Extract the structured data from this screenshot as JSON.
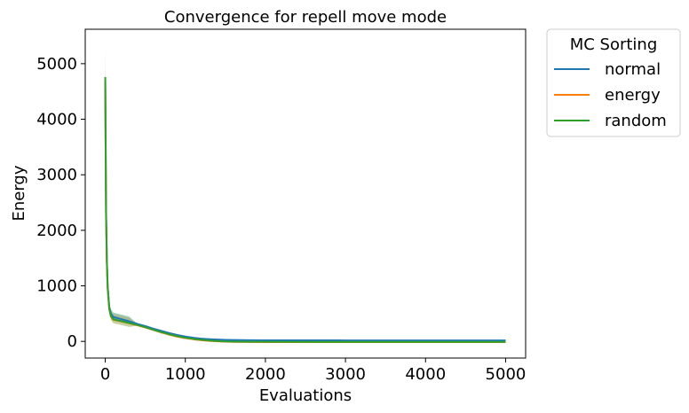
{
  "chart_data": {
    "type": "line",
    "title": "Convergence for repell move mode",
    "xlabel": "Evaluations",
    "ylabel": "Energy",
    "xlim": [
      -250,
      5250
    ],
    "ylim": [
      -300,
      5620
    ],
    "xticks": [
      0,
      1000,
      2000,
      3000,
      4000,
      5000
    ],
    "yticks": [
      0,
      1000,
      2000,
      3000,
      4000,
      5000
    ],
    "grid": false,
    "legend": {
      "title": "MC Sorting",
      "placement": "outside-top-right"
    },
    "series": [
      {
        "name": "normal",
        "color": "#1f77b4",
        "x": [
          0,
          10,
          20,
          30,
          50,
          70,
          100,
          150,
          200,
          300,
          400,
          500,
          600,
          700,
          800,
          900,
          1000,
          1100,
          1200,
          1300,
          1400,
          1500,
          1600,
          1800,
          2000,
          2500,
          3000,
          3500,
          4000,
          4500,
          5000
        ],
        "y": [
          4600,
          2300,
          1450,
          1000,
          620,
          500,
          440,
          420,
          400,
          360,
          315,
          275,
          230,
          190,
          150,
          115,
          88,
          66,
          50,
          40,
          33,
          28,
          25,
          22,
          20,
          19,
          18,
          18,
          18,
          18,
          18
        ],
        "band": [
          1,
          4
        ]
      },
      {
        "name": "energy",
        "color": "#ff7f0e",
        "x": [
          0,
          10,
          20,
          30,
          50,
          70,
          100,
          150,
          200,
          300,
          400,
          500,
          600,
          700,
          800,
          900,
          1000,
          1100,
          1200,
          1300,
          1400,
          1500,
          1600,
          1800,
          2000,
          2500,
          3000,
          3500,
          4000,
          4500,
          5000
        ],
        "y": [
          4700,
          2250,
          1400,
          950,
          580,
          450,
          390,
          375,
          360,
          325,
          290,
          250,
          205,
          160,
          120,
          85,
          58,
          38,
          22,
          10,
          2,
          -4,
          -8,
          -10,
          -12,
          -12,
          -12,
          -12,
          -12,
          -12,
          -12
        ],
        "band": [
          1,
          5
        ]
      },
      {
        "name": "random",
        "color": "#2ca02c",
        "x": [
          0,
          10,
          20,
          30,
          50,
          70,
          100,
          150,
          200,
          300,
          400,
          500,
          600,
          700,
          800,
          900,
          1000,
          1100,
          1200,
          1300,
          1400,
          1500,
          1600,
          1800,
          2000,
          2500,
          3000,
          3500,
          4000,
          4500,
          5000
        ],
        "y": [
          4760,
          2350,
          1450,
          980,
          590,
          460,
          400,
          380,
          365,
          330,
          295,
          255,
          210,
          168,
          128,
          94,
          66,
          45,
          28,
          15,
          6,
          0,
          -4,
          -6,
          -7,
          -8,
          -8,
          -8,
          -8,
          -8,
          -8
        ],
        "band": [
          1,
          6
        ]
      }
    ]
  }
}
